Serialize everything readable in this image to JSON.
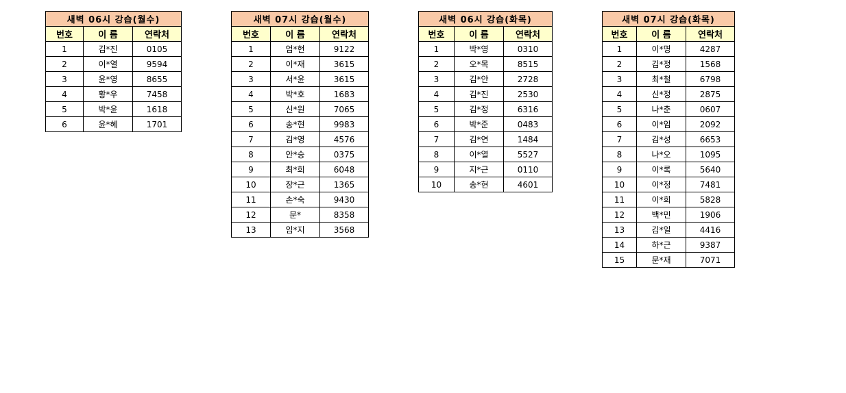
{
  "tables": [
    {
      "title": "새벽 06시 강습(월수)",
      "headers": [
        "번호",
        "이 름",
        "연락처"
      ],
      "rows": [
        [
          "1",
          "김*진",
          "0105"
        ],
        [
          "2",
          "이*열",
          "9594"
        ],
        [
          "3",
          "윤*영",
          "8655"
        ],
        [
          "4",
          "황*우",
          "7458"
        ],
        [
          "5",
          "박*윤",
          "1618"
        ],
        [
          "6",
          "윤*혜",
          "1701"
        ]
      ]
    },
    {
      "title": "새벽 07시 강습(월수)",
      "headers": [
        "번호",
        "이 름",
        "연락처"
      ],
      "rows": [
        [
          "1",
          "엄*현",
          "9122"
        ],
        [
          "2",
          "이*재",
          "3615"
        ],
        [
          "3",
          "서*윤",
          "3615"
        ],
        [
          "4",
          "박*호",
          "1683"
        ],
        [
          "5",
          "신*원",
          "7065"
        ],
        [
          "6",
          "송*현",
          "9983"
        ],
        [
          "7",
          "김*영",
          "4576"
        ],
        [
          "8",
          "안*승",
          "0375"
        ],
        [
          "9",
          "최*희",
          "6048"
        ],
        [
          "10",
          "장*근",
          "1365"
        ],
        [
          "11",
          "손*숙",
          "9430"
        ],
        [
          "12",
          "문*",
          "8358"
        ],
        [
          "13",
          "임*지",
          "3568"
        ]
      ]
    },
    {
      "title": "새벽 06시 강습(화목)",
      "headers": [
        "번호",
        "이 름",
        "연락처"
      ],
      "rows": [
        [
          "1",
          "박*영",
          "0310"
        ],
        [
          "2",
          "오*목",
          "8515"
        ],
        [
          "3",
          "김*안",
          "2728"
        ],
        [
          "4",
          "김*진",
          "2530"
        ],
        [
          "5",
          "김*정",
          "6316"
        ],
        [
          "6",
          "박*준",
          "0483"
        ],
        [
          "7",
          "김*연",
          "1484"
        ],
        [
          "8",
          "이*열",
          "5527"
        ],
        [
          "9",
          "지*근",
          "0110"
        ],
        [
          "10",
          "송*현",
          "4601"
        ]
      ]
    },
    {
      "title": "새벽 07시 강습(화목)",
      "headers": [
        "번호",
        "이 름",
        "연락처"
      ],
      "rows": [
        [
          "1",
          "이*명",
          "4287"
        ],
        [
          "2",
          "김*정",
          "1568"
        ],
        [
          "3",
          "최*철",
          "6798"
        ],
        [
          "4",
          "신*정",
          "2875"
        ],
        [
          "5",
          "나*춘",
          "0607"
        ],
        [
          "6",
          "이*임",
          "2092"
        ],
        [
          "7",
          "김*성",
          "6653"
        ],
        [
          "8",
          "나*오",
          "1095"
        ],
        [
          "9",
          "이*록",
          "5640"
        ],
        [
          "10",
          "이*정",
          "7481"
        ],
        [
          "11",
          "이*희",
          "5828"
        ],
        [
          "12",
          "백*민",
          "1906"
        ],
        [
          "13",
          "김*일",
          "4416"
        ],
        [
          "14",
          "하*근",
          "9387"
        ],
        [
          "15",
          "문*재",
          "7071"
        ]
      ]
    }
  ]
}
